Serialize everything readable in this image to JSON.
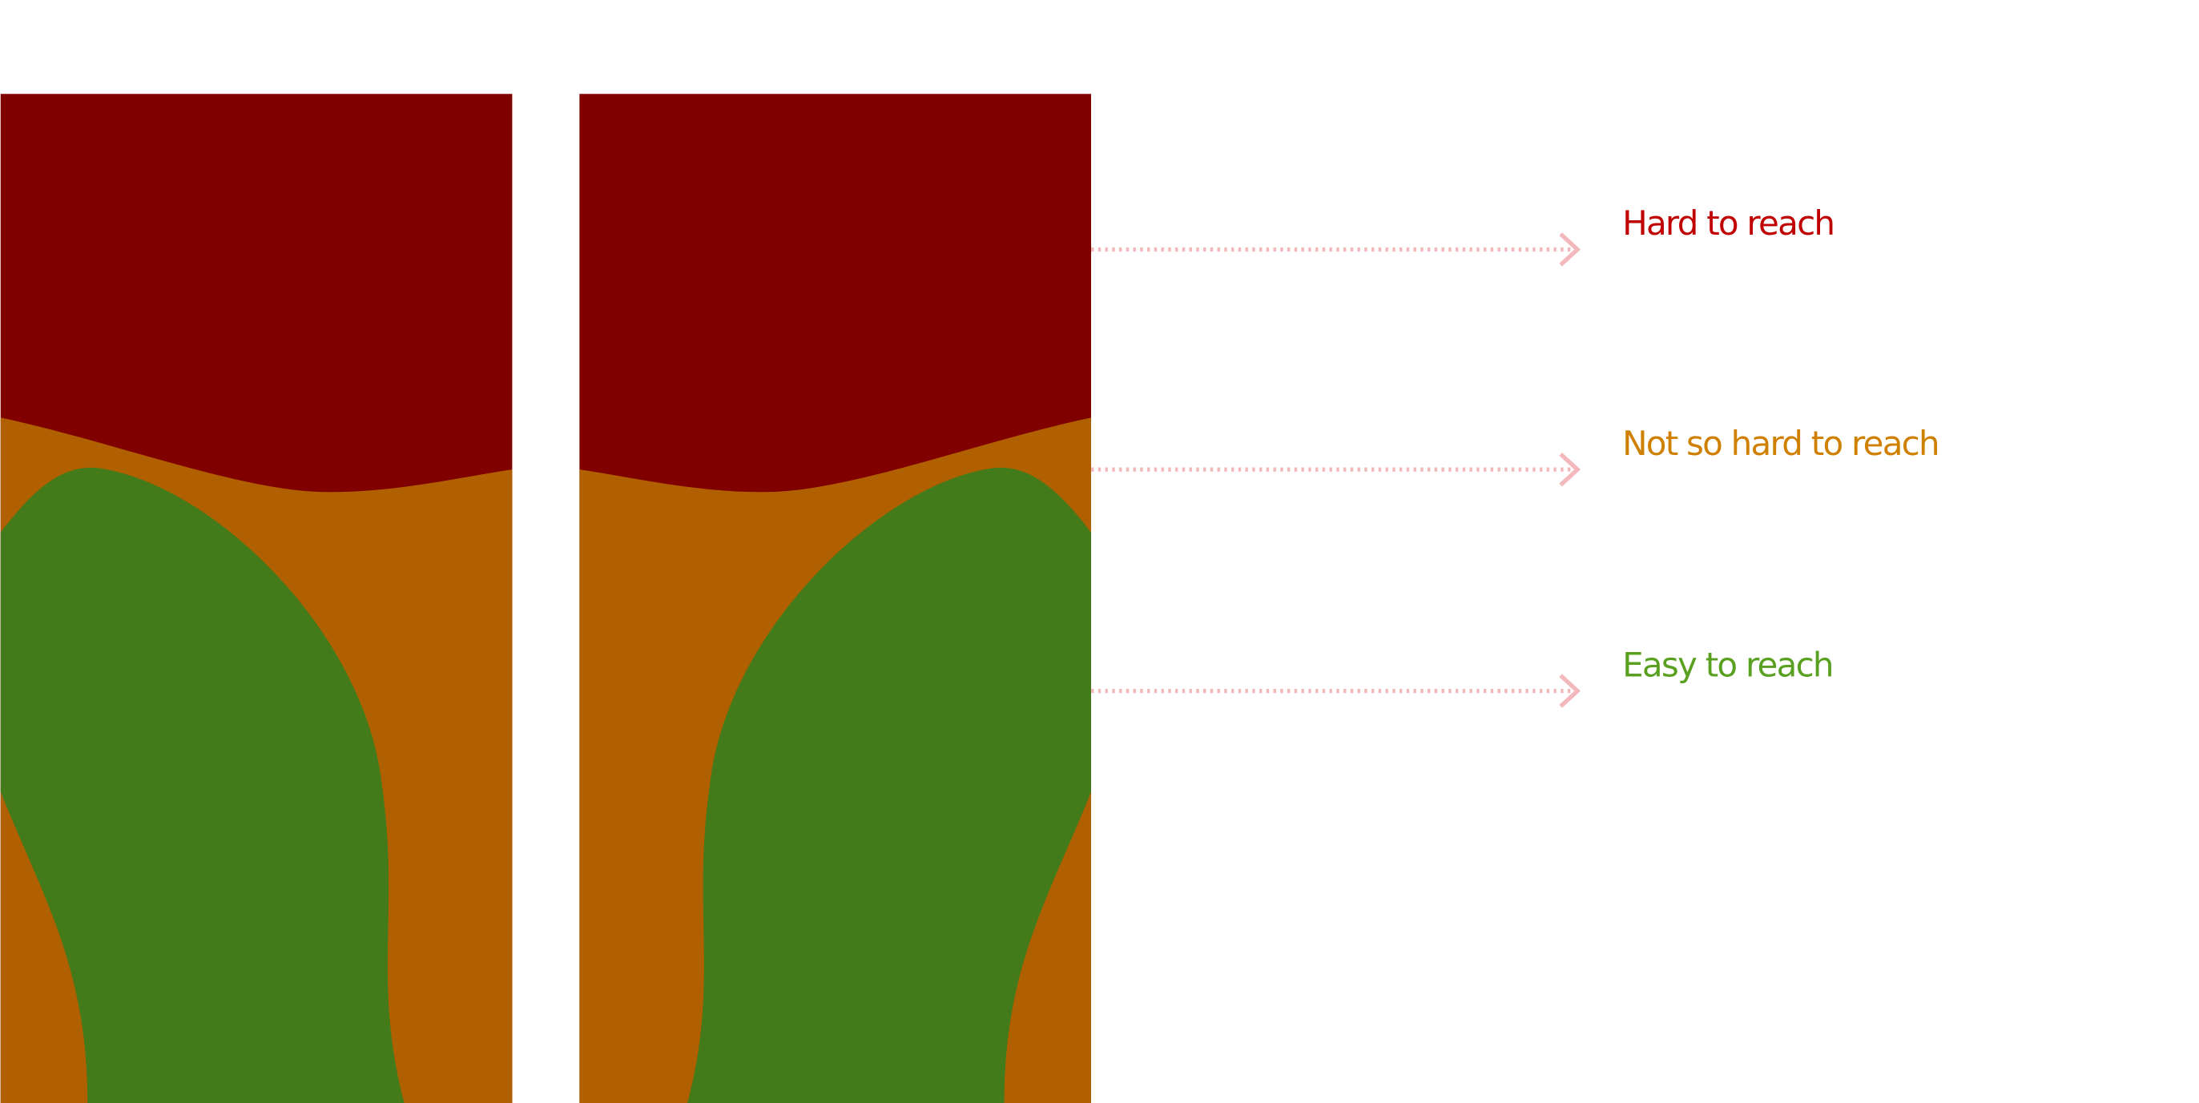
{
  "zones": [
    {
      "label": "Hard to reach"
    },
    {
      "label": "Not so hard to reach"
    },
    {
      "label": "Easy to reach"
    }
  ]
}
